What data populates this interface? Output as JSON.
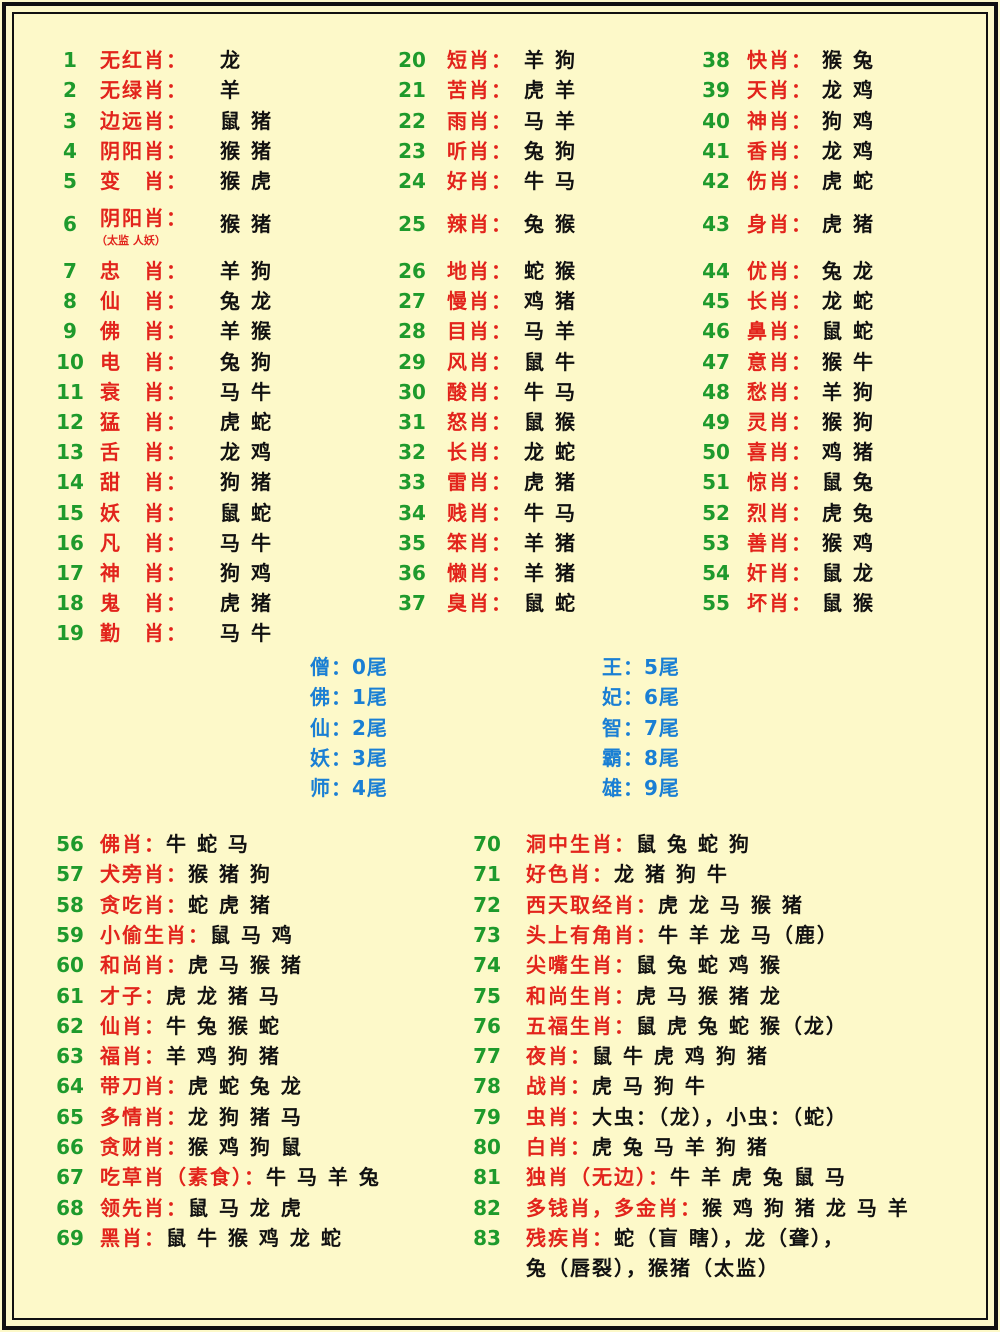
{
  "colors": {
    "number": "#1e9a2c",
    "label": "#e2241c",
    "value": "#111111",
    "tail": "#1a7fd4",
    "background": "#fdf9c9"
  },
  "top_columns": [
    [
      {
        "num": "1",
        "label": "无红肖：",
        "value": "龙"
      },
      {
        "num": "2",
        "label": "无绿肖：",
        "value": "羊"
      },
      {
        "num": "3",
        "label": "边远肖：",
        "value": "鼠 猪"
      },
      {
        "num": "4",
        "label": "阴阳肖：",
        "value": "猴 猪"
      },
      {
        "num": "5",
        "label": "变　肖：",
        "value": "猴 虎"
      },
      {
        "num": "6",
        "label": "阴阳肖：",
        "value": "猴 猪",
        "note": "（太监 人妖）"
      },
      {
        "num": "7",
        "label": "忠　肖：",
        "value": "羊 狗"
      },
      {
        "num": "8",
        "label": "仙　肖：",
        "value": "兔 龙"
      },
      {
        "num": "9",
        "label": "佛　肖：",
        "value": "羊 猴"
      },
      {
        "num": "10",
        "label": "电　肖：",
        "value": "兔 狗"
      },
      {
        "num": "11",
        "label": "衰　肖：",
        "value": "马 牛"
      },
      {
        "num": "12",
        "label": "猛　肖：",
        "value": "虎 蛇"
      },
      {
        "num": "13",
        "label": "舌　肖：",
        "value": "龙 鸡"
      },
      {
        "num": "14",
        "label": "甜　肖：",
        "value": "狗 猪"
      },
      {
        "num": "15",
        "label": "妖　肖：",
        "value": "鼠 蛇"
      },
      {
        "num": "16",
        "label": "凡　肖：",
        "value": "马 牛"
      },
      {
        "num": "17",
        "label": "神　肖：",
        "value": "狗 鸡"
      },
      {
        "num": "18",
        "label": "鬼　肖：",
        "value": "虎 猪"
      },
      {
        "num": "19",
        "label": "勤　肖：",
        "value": "马 牛"
      }
    ],
    [
      {
        "num": "20",
        "label": "短肖：",
        "value": "羊 狗"
      },
      {
        "num": "21",
        "label": "苦肖：",
        "value": "虎 羊"
      },
      {
        "num": "22",
        "label": "雨肖：",
        "value": "马 羊"
      },
      {
        "num": "23",
        "label": "听肖：",
        "value": "兔 狗"
      },
      {
        "num": "24",
        "label": "好肖：",
        "value": "牛 马"
      },
      {
        "num": "25",
        "label": "辣肖：",
        "value": "兔 猴"
      },
      {
        "num": "26",
        "label": "地肖：",
        "value": "蛇 猴"
      },
      {
        "num": "27",
        "label": "慢肖：",
        "value": "鸡 猪"
      },
      {
        "num": "28",
        "label": "目肖：",
        "value": "马 羊"
      },
      {
        "num": "29",
        "label": "风肖：",
        "value": "鼠 牛"
      },
      {
        "num": "30",
        "label": "酸肖：",
        "value": "牛 马"
      },
      {
        "num": "31",
        "label": "怒肖：",
        "value": "鼠 猴"
      },
      {
        "num": "32",
        "label": "长肖：",
        "value": "龙 蛇"
      },
      {
        "num": "33",
        "label": "雷肖：",
        "value": "虎 猪"
      },
      {
        "num": "34",
        "label": "贱肖：",
        "value": "牛 马"
      },
      {
        "num": "35",
        "label": "笨肖：",
        "value": "羊 猪"
      },
      {
        "num": "36",
        "label": "懒肖：",
        "value": "羊 猪"
      },
      {
        "num": "37",
        "label": "臭肖：",
        "value": "鼠 蛇"
      }
    ],
    [
      {
        "num": "38",
        "label": "快肖：",
        "value": "猴 兔"
      },
      {
        "num": "39",
        "label": "天肖：",
        "value": "龙 鸡"
      },
      {
        "num": "40",
        "label": "神肖：",
        "value": "狗 鸡"
      },
      {
        "num": "41",
        "label": "香肖：",
        "value": "龙 鸡"
      },
      {
        "num": "42",
        "label": "伤肖：",
        "value": "虎 蛇"
      },
      {
        "num": "43",
        "label": "身肖：",
        "value": "虎 猪"
      },
      {
        "num": "44",
        "label": "优肖：",
        "value": "兔 龙"
      },
      {
        "num": "45",
        "label": "长肖：",
        "value": "龙 蛇"
      },
      {
        "num": "46",
        "label": "鼻肖：",
        "value": "鼠 蛇"
      },
      {
        "num": "47",
        "label": "意肖：",
        "value": "猴 牛"
      },
      {
        "num": "48",
        "label": "愁肖：",
        "value": "羊 狗"
      },
      {
        "num": "49",
        "label": "灵肖：",
        "value": "猴 狗"
      },
      {
        "num": "50",
        "label": "喜肖：",
        "value": "鸡 猪"
      },
      {
        "num": "51",
        "label": "惊肖：",
        "value": "鼠 兔"
      },
      {
        "num": "52",
        "label": "烈肖：",
        "value": "虎 兔"
      },
      {
        "num": "53",
        "label": "善肖：",
        "value": "猴 鸡"
      },
      {
        "num": "54",
        "label": "奸肖：",
        "value": "鼠 龙"
      },
      {
        "num": "55",
        "label": "坏肖：",
        "value": "鼠 猴"
      }
    ]
  ],
  "tails": [
    [
      "僧：0尾",
      "佛：1尾",
      "仙：2尾",
      "妖：3尾",
      "师：4尾"
    ],
    [
      "王：5尾",
      "妃：6尾",
      "智：7尾",
      "霸：8尾",
      "雄：9尾"
    ]
  ],
  "bottom_columns": [
    [
      {
        "num": "56",
        "label": "佛肖：",
        "value": "牛 蛇 马"
      },
      {
        "num": "57",
        "label": "犬旁肖：",
        "value": "猴 猪 狗"
      },
      {
        "num": "58",
        "label": "贪吃肖：",
        "value": "蛇 虎 猪"
      },
      {
        "num": "59",
        "label": "小偷生肖：",
        "value": "鼠 马 鸡"
      },
      {
        "num": "60",
        "label": "和尚肖：",
        "value": "虎 马 猴 猪"
      },
      {
        "num": "61",
        "label": "才子：",
        "value": "虎 龙 猪 马"
      },
      {
        "num": "62",
        "label": "仙肖：",
        "value": "牛 兔 猴 蛇"
      },
      {
        "num": "63",
        "label": "福肖：",
        "value": "羊 鸡 狗 猪"
      },
      {
        "num": "64",
        "label": "带刀肖：",
        "value": "虎 蛇 兔 龙"
      },
      {
        "num": "65",
        "label": "多情肖：",
        "value": "龙 狗 猪 马"
      },
      {
        "num": "66",
        "label": "贪财肖：",
        "value": "猴 鸡 狗 鼠"
      },
      {
        "num": "67",
        "label": "吃草肖（素食）：",
        "value": "牛 马 羊 兔"
      },
      {
        "num": "68",
        "label": "领先肖：",
        "value": "鼠 马 龙  虎"
      },
      {
        "num": "69",
        "label": "黑肖：",
        "value": "鼠 牛 猴 鸡 龙 蛇"
      }
    ],
    [
      {
        "num": "70",
        "label": "洞中生肖：",
        "value": "鼠 兔 蛇 狗"
      },
      {
        "num": "71",
        "label": "好色肖：",
        "value": "龙 猪 狗 牛"
      },
      {
        "num": "72",
        "label": "西天取经肖：",
        "value": "虎 龙 马 猴 猪"
      },
      {
        "num": "73",
        "label": "头上有角肖：",
        "value": "牛 羊 龙 马（鹿）"
      },
      {
        "num": "74",
        "label": "尖嘴生肖：",
        "value": "鼠 兔 蛇 鸡 猴"
      },
      {
        "num": "75",
        "label": "和尚生肖：",
        "value": "虎 马 猴 猪 龙"
      },
      {
        "num": "76",
        "label": "五福生肖：",
        "value": "鼠 虎 兔 蛇 猴（龙）"
      },
      {
        "num": "77",
        "label": "夜肖：",
        "value": "鼠 牛 虎 鸡 狗 猪"
      },
      {
        "num": "78",
        "label": "战肖：",
        "value": "虎 马 狗 牛"
      },
      {
        "num": "79",
        "label": "虫肖：",
        "value": "大虫：（龙），小虫：（蛇）"
      },
      {
        "num": "80",
        "label": "白肖：",
        "value": "虎 兔 马 羊 狗 猪"
      },
      {
        "num": "81",
        "label": "独肖（无边）：",
        "value": "牛 羊 虎 兔 鼠 马"
      },
      {
        "num": "82",
        "label": "多钱肖，多金肖：",
        "value": "猴 鸡 狗 猪 龙 马 羊"
      },
      {
        "num": "83",
        "label": "残疾肖：",
        "value": "蛇（盲 瞎），龙（聋），",
        "value2": "兔（唇裂），猴猪（太监）"
      }
    ]
  ]
}
